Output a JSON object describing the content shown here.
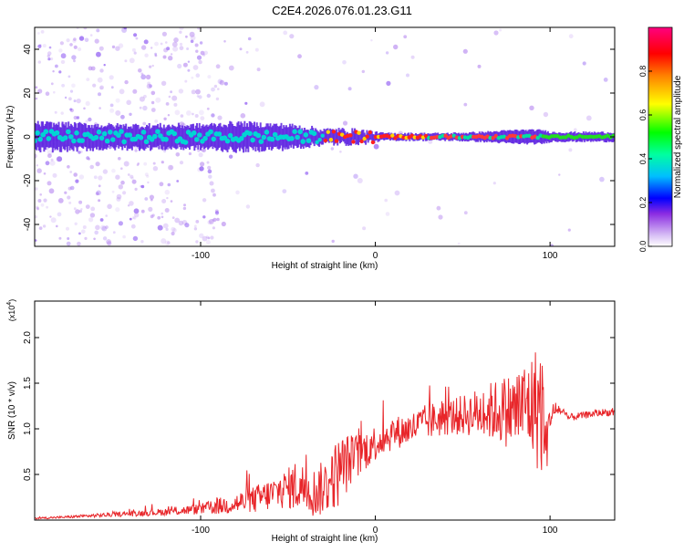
{
  "title": "C2E4.2026.076.01.23.G11",
  "colors": {
    "snr_line": "#e8262a",
    "spectrum_band": "#5b1ee0",
    "spectrum_scatter": "#b78af0",
    "colorbar_stops": [
      "#ffffff",
      "#8a2be2",
      "#0000ff",
      "#00bfff",
      "#00ffa0",
      "#00ff00",
      "#ffff00",
      "#ff8000",
      "#ff0000",
      "#ff0080"
    ]
  },
  "chart_data": [
    {
      "type": "heatmap",
      "name": "spectrogram",
      "xlabel": "Height of straight line (km)",
      "ylabel": "Frequency (Hz)",
      "xlim": [
        -195,
        137
      ],
      "ylim": [
        -50,
        50
      ],
      "xticks": [
        -100,
        0,
        100
      ],
      "xtick_labels": [
        "-100",
        "0",
        "100"
      ],
      "yticks": [
        -40,
        -20,
        0,
        20,
        40
      ],
      "ytick_labels": [
        "-40",
        "-20",
        "0",
        "20",
        "40"
      ],
      "ridge": {
        "frequency_hz": 0,
        "x": [
          -195,
          -150,
          -100,
          -80,
          -50,
          -30,
          -20,
          0,
          5,
          40,
          60,
          80,
          95,
          100,
          137
        ],
        "band_halfwidth_hz": [
          6,
          5,
          5,
          6,
          5,
          3,
          3,
          2,
          1.5,
          1.5,
          2,
          3,
          3,
          2,
          2
        ]
      },
      "colorbar": {
        "label": "Normalized spectral amplitude",
        "range": [
          0,
          1
        ],
        "ticks": [
          0.0,
          0.2,
          0.4,
          0.6,
          0.8
        ],
        "tick_labels": [
          "0.0",
          "0.2",
          "0.4",
          "0.6",
          "0.8"
        ]
      }
    },
    {
      "type": "line",
      "name": "snr",
      "xlabel": "Height of straight line (km)",
      "ylabel": "SNR (10 * v/v)",
      "y_multiplier": {
        "base": "(x10",
        "exp": "4",
        "close": ")"
      },
      "xlim": [
        -195,
        137
      ],
      "ylim": [
        0,
        24000
      ],
      "xticks": [
        -100,
        0,
        100
      ],
      "xtick_labels": [
        "-100",
        "0",
        "100"
      ],
      "yticks": [
        5000,
        10000,
        15000,
        20000
      ],
      "ytick_labels": [
        "0.5",
        "1.0",
        "1.5",
        "2.0"
      ],
      "series": [
        {
          "x": [
            -195,
            -180,
            -160,
            -140,
            -120,
            -100,
            -90,
            -80,
            -70,
            -60,
            -50,
            -45,
            -40,
            -35,
            -30,
            -25,
            -20,
            -15,
            -10,
            -5,
            0,
            10,
            20,
            30,
            40,
            50,
            60,
            70,
            80,
            85,
            90,
            95,
            98,
            100,
            105,
            110,
            120,
            130,
            137
          ],
          "values": [
            200,
            300,
            500,
            700,
            900,
            1200,
            1500,
            1800,
            2200,
            2800,
            3500,
            3800,
            3500,
            3000,
            3500,
            4500,
            5500,
            6500,
            7000,
            7800,
            8500,
            9500,
            10000,
            10800,
            11200,
            11500,
            11800,
            12000,
            12000,
            12500,
            12500,
            12500,
            8000,
            11500,
            12200,
            11200,
            11500,
            11800,
            11800
          ],
          "amp": [
            100,
            120,
            200,
            300,
            400,
            600,
            900,
            1200,
            1500,
            1800,
            2200,
            3000,
            2500,
            2800,
            3000,
            3500,
            4000,
            3000,
            2500,
            2200,
            2000,
            1800,
            1800,
            2000,
            2000,
            2200,
            2800,
            3500,
            4500,
            5000,
            6000,
            8000,
            3000,
            1500,
            600,
            400,
            400,
            400,
            400
          ]
        }
      ]
    }
  ]
}
